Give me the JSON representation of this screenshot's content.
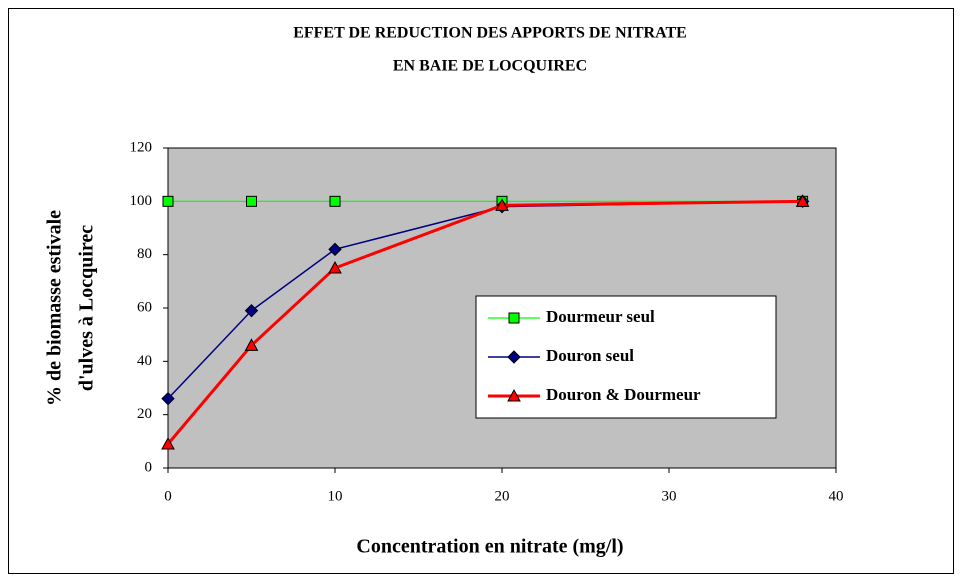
{
  "chart_data": {
    "type": "line",
    "title": [
      "EFFET DE REDUCTION DES APPORTS DE NITRATE",
      "EN BAIE DE LOCQUIREC"
    ],
    "xlabel": "Concentration en nitrate (mg/l)",
    "ylabel": [
      "% de biomasse estivale",
      "d'ulves à Locquirec"
    ],
    "x": [
      0,
      5,
      10,
      20,
      38
    ],
    "series": [
      {
        "name": "Dourmeur seul",
        "color": "#00ff00",
        "marker": "square",
        "values": [
          100,
          100,
          100,
          100,
          100
        ]
      },
      {
        "name": "Douron seul",
        "color": "#000080",
        "marker": "diamond",
        "values": [
          26,
          59,
          82,
          98,
          100
        ]
      },
      {
        "name": "Douron & Dourmeur",
        "color": "#ff0000",
        "marker": "triangle",
        "values": [
          9,
          46,
          75,
          98.5,
          100
        ]
      }
    ],
    "xlim": [
      0,
      40
    ],
    "xticks": [
      0,
      10,
      20,
      30,
      40
    ],
    "ylim": [
      0,
      120
    ],
    "yticks": [
      0,
      20,
      40,
      60,
      80,
      100,
      120
    ],
    "plot_background": "#c0c0c0"
  }
}
